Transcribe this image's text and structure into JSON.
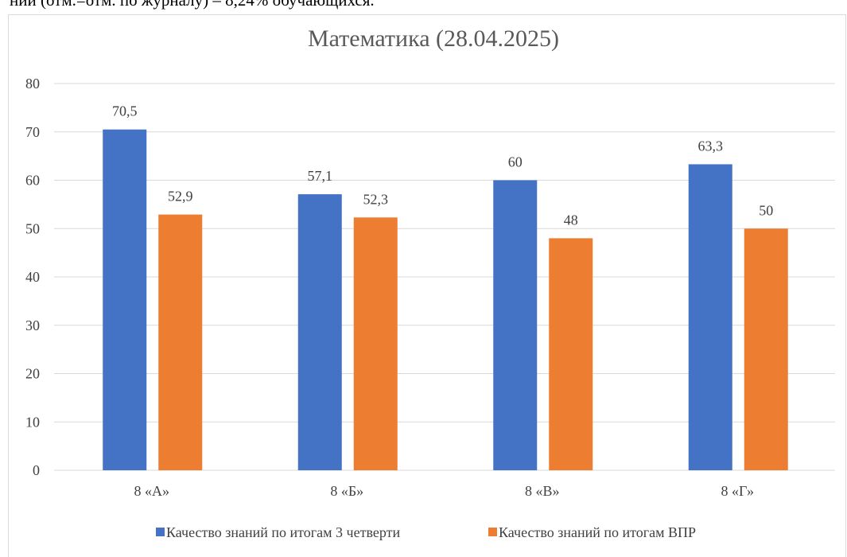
{
  "page_text": "ний (отм.=отм. по журналу) – 8,24% обучающихся.",
  "chart_data": {
    "type": "bar",
    "title": "Математика (28.04.2025)",
    "categories": [
      "8 «А»",
      "8 «Б»",
      "8 «В»",
      "8 «Г»"
    ],
    "series": [
      {
        "name": "Качество знаний по итогам 3 четверти",
        "color": "#4472c4",
        "values": [
          70.5,
          57.1,
          60,
          63.3
        ],
        "value_labels": [
          "70,5",
          "57,1",
          "60",
          "63,3"
        ]
      },
      {
        "name": "Качество знаний по итогам ВПР",
        "color": "#ed7d31",
        "values": [
          52.9,
          52.3,
          48,
          50
        ],
        "value_labels": [
          "52,9",
          "52,3",
          "48",
          "50"
        ]
      }
    ],
    "ylim": [
      0,
      80
    ],
    "yticks": [
      0,
      10,
      20,
      30,
      40,
      50,
      60,
      70,
      80
    ],
    "grid": true,
    "legend": "bottom"
  }
}
